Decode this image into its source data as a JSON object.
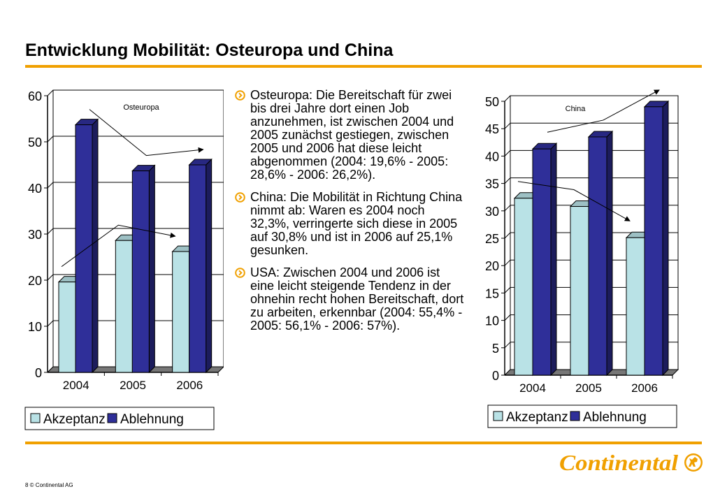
{
  "header": {
    "title": "Entwicklung Mobilität: Osteuropa und China"
  },
  "colors": {
    "accent": "#f0a000",
    "akzeptanz": "#b9e2e6",
    "ablehnung": "#2f2f99",
    "logo": "#f0a000"
  },
  "bullets": [
    {
      "text": "Osteuropa: Die Bereitschaft für zwei bis drei Jahre dort einen Job anzunehmen, ist zwischen 2004 und 2005 zunächst gestiegen, zwischen 2005 und 2006 hat diese leicht abgenommen (2004: 19,6% - 2005: 28,6% - 2006: 26,2%)."
    },
    {
      "text": "China: Die Mobilität in Richtung China nimmt ab: Waren es 2004 noch 32,3%, verringerte sich diese in 2005 auf 30,8% und ist in 2006 auf 25,1% gesunken."
    },
    {
      "text": "USA: Zwischen 2004 und 2006 ist eine leicht steigende Tendenz in der ohnehin recht hohen Bereitschaft, dort zu arbeiten, erkennbar (2004: 55,4% - 2005: 56,1% - 2006: 57%)."
    }
  ],
  "footer": {
    "text": "8 © Continental AG"
  },
  "logo": {
    "text": "Continental"
  },
  "chart_data": [
    {
      "type": "bar",
      "title": "Osteuropa",
      "categories": [
        "2004",
        "2005",
        "2006"
      ],
      "series": [
        {
          "name": "Akzeptanz",
          "values": [
            19.6,
            28.6,
            26.2
          ]
        },
        {
          "name": "Ablehnung",
          "values": [
            53.7,
            43.7,
            45.0
          ]
        }
      ],
      "ylim": [
        0,
        60
      ],
      "yticks": [
        "0",
        "10",
        "20",
        "30",
        "40",
        "50",
        "60"
      ],
      "grid": true,
      "legend_position": "bottom"
    },
    {
      "type": "bar",
      "title": "China",
      "categories": [
        "2004",
        "2005",
        "2006"
      ],
      "series": [
        {
          "name": "Akzeptanz",
          "values": [
            32.3,
            30.8,
            25.1
          ]
        },
        {
          "name": "Ablehnung",
          "values": [
            41.3,
            43.5,
            49.0
          ]
        }
      ],
      "ylim": [
        0,
        50
      ],
      "yticks": [
        "0",
        "5",
        "10",
        "15",
        "20",
        "25",
        "30",
        "35",
        "40",
        "45",
        "50"
      ],
      "grid": true,
      "legend_position": "bottom"
    }
  ]
}
